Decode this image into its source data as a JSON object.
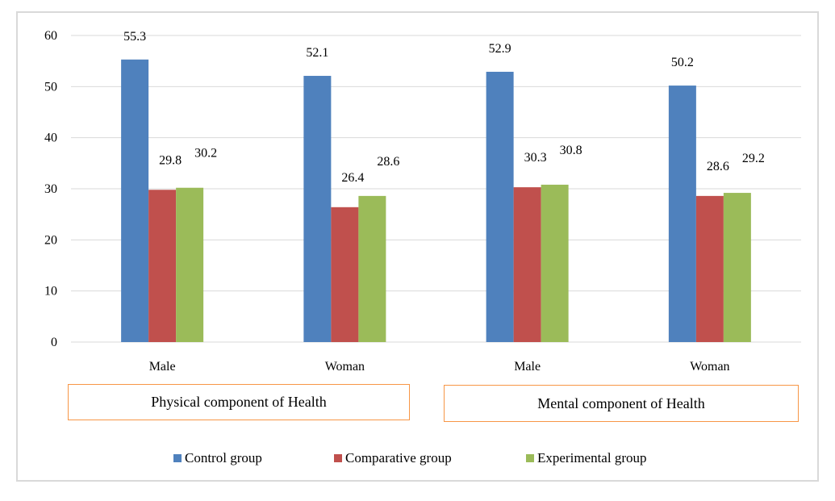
{
  "chart_data": {
    "type": "bar",
    "title": "",
    "xlabel": "",
    "ylabel": "",
    "ylim": [
      0,
      60
    ],
    "yticks": [
      0,
      10,
      20,
      30,
      40,
      50,
      60
    ],
    "grid": true,
    "categories": [
      "Male",
      "Woman",
      "Male",
      "Woman"
    ],
    "category_groups": [
      {
        "label": "Physical component of Health",
        "categories": [
          0,
          1
        ]
      },
      {
        "label": "Mental component of Health",
        "categories": [
          2,
          3
        ]
      }
    ],
    "series": [
      {
        "name": "Control group",
        "color": "#4f81bd",
        "values": [
          55.3,
          52.1,
          52.9,
          50.2
        ]
      },
      {
        "name": "Comparative group",
        "color": "#c0504d",
        "values": [
          29.8,
          26.4,
          30.3,
          28.6
        ]
      },
      {
        "name": "Experimental group",
        "color": "#9bbb59",
        "values": [
          30.2,
          28.6,
          30.8,
          29.2
        ]
      }
    ],
    "legend_position": "bottom"
  }
}
